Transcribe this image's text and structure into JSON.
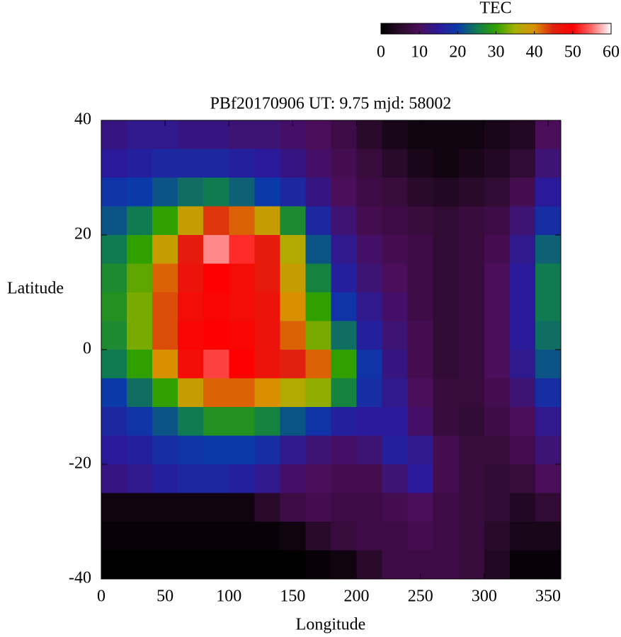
{
  "chart_data": {
    "type": "heatmap",
    "title": "PBf20170906  UT: 9.75  mjd: 58002",
    "x_label": "Longitude",
    "y_label": "Latitude",
    "xlim": [
      0,
      360
    ],
    "ylim": [
      -40,
      40
    ],
    "xticks": [
      0,
      50,
      100,
      150,
      200,
      250,
      300,
      350
    ],
    "yticks": [
      -40,
      -20,
      0,
      20,
      40
    ],
    "colorbar_label": "TEC",
    "zlim": [
      0,
      60
    ],
    "zticks": [
      0,
      10,
      20,
      30,
      40,
      50,
      60
    ],
    "colormap": [
      {
        "value": 0,
        "color": "#000000"
      },
      {
        "value": 5,
        "color": "#2a0a2a"
      },
      {
        "value": 10,
        "color": "#4a0e5a"
      },
      {
        "value": 15,
        "color": "#2a1a9a"
      },
      {
        "value": 20,
        "color": "#0a3aaa"
      },
      {
        "value": 25,
        "color": "#107a50"
      },
      {
        "value": 30,
        "color": "#30a000"
      },
      {
        "value": 35,
        "color": "#a8b000"
      },
      {
        "value": 40,
        "color": "#d89000"
      },
      {
        "value": 45,
        "color": "#e02010"
      },
      {
        "value": 50,
        "color": "#ff0000"
      },
      {
        "value": 55,
        "color": "#ff6a6a"
      },
      {
        "value": 60,
        "color": "#ffffff"
      }
    ],
    "x": [
      10,
      30,
      50,
      70,
      90,
      110,
      130,
      150,
      170,
      190,
      210,
      230,
      250,
      270,
      290,
      310,
      330,
      350
    ],
    "y": [
      37.5,
      32.5,
      27.5,
      22.5,
      17.5,
      12.5,
      7.5,
      2.5,
      -2.5,
      -7.5,
      -12.5,
      -17.5,
      -22.5,
      -27.5,
      -32.5,
      -37.5
    ],
    "z": [
      [
        13,
        14,
        14,
        13,
        13,
        12,
        12,
        11,
        10,
        8,
        5,
        3,
        2,
        2,
        2,
        3,
        4,
        10
      ],
      [
        15,
        16,
        17,
        17,
        17,
        16,
        15,
        13,
        11,
        9,
        7,
        5,
        3,
        2,
        3,
        4,
        6,
        12
      ],
      [
        19,
        20,
        22,
        24,
        25,
        23,
        20,
        17,
        13,
        10,
        8,
        7,
        5,
        4,
        5,
        6,
        9,
        15
      ],
      [
        22,
        25,
        30,
        38,
        44,
        42,
        38,
        27,
        17,
        12,
        9,
        8,
        7,
        6,
        7,
        8,
        12,
        18
      ],
      [
        25,
        30,
        38,
        46,
        56,
        52,
        46,
        36,
        22,
        14,
        11,
        9,
        8,
        6,
        7,
        9,
        14,
        23
      ],
      [
        27,
        32,
        42,
        47,
        50,
        48,
        46,
        38,
        26,
        16,
        12,
        10,
        8,
        6,
        7,
        10,
        15,
        25
      ],
      [
        28,
        33,
        43,
        48,
        49,
        48,
        47,
        40,
        30,
        19,
        14,
        11,
        8,
        6,
        7,
        10,
        15,
        25
      ],
      [
        27,
        33,
        43,
        49,
        50,
        49,
        47,
        42,
        33,
        24,
        16,
        12,
        9,
        6,
        7,
        10,
        15,
        24
      ],
      [
        25,
        30,
        40,
        48,
        53,
        50,
        47,
        45,
        42,
        30,
        19,
        13,
        9,
        6,
        7,
        10,
        14,
        22
      ],
      [
        20,
        24,
        30,
        38,
        42,
        42,
        40,
        36,
        34,
        26,
        18,
        14,
        10,
        7,
        7,
        9,
        12,
        18
      ],
      [
        17,
        19,
        22,
        25,
        28,
        28,
        26,
        22,
        19,
        16,
        15,
        15,
        11,
        7,
        6,
        8,
        10,
        14
      ],
      [
        15,
        16,
        18,
        19,
        20,
        20,
        18,
        14,
        12,
        11,
        12,
        16,
        14,
        9,
        7,
        7,
        9,
        12
      ],
      [
        13,
        14,
        16,
        17,
        17,
        16,
        14,
        11,
        10,
        9,
        9,
        12,
        15,
        9,
        7,
        6,
        7,
        10
      ],
      [
        2,
        2,
        2,
        2,
        2,
        2,
        5,
        8,
        9,
        8,
        8,
        9,
        10,
        8,
        7,
        6,
        4,
        6
      ],
      [
        1,
        1,
        1,
        1,
        1,
        1,
        1,
        2,
        5,
        7,
        8,
        8,
        9,
        8,
        7,
        5,
        3,
        3
      ],
      [
        0,
        0,
        0,
        0,
        0,
        0,
        0,
        0,
        1,
        2,
        5,
        8,
        8,
        8,
        7,
        4,
        1,
        1
      ]
    ]
  }
}
